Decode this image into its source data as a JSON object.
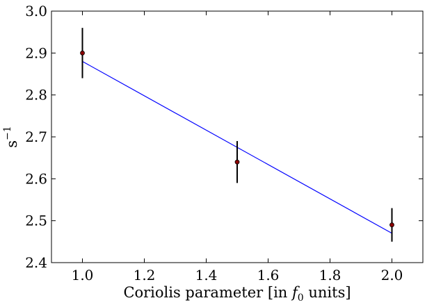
{
  "chart_data": {
    "type": "scatter",
    "xlabel_parts": [
      "Coriolis parameter [in ",
      "f",
      "0",
      " units]"
    ],
    "ylabel_parts": [
      "s",
      "−1"
    ],
    "xlim": [
      0.9,
      2.1
    ],
    "ylim": [
      2.4,
      3.0
    ],
    "xticks": [
      1.0,
      1.2,
      1.4,
      1.6,
      1.8,
      2.0
    ],
    "xtick_labels": [
      "1.0",
      "1.2",
      "1.4",
      "1.6",
      "1.8",
      "2.0"
    ],
    "yticks": [
      2.4,
      2.5,
      2.6,
      2.7,
      2.8,
      2.9,
      3.0
    ],
    "ytick_labels": [
      "2.4",
      "2.5",
      "2.6",
      "2.7",
      "2.8",
      "2.9",
      "3.0"
    ],
    "grid": false,
    "points": [
      {
        "x": 1.0,
        "y": 2.9,
        "err": 0.06
      },
      {
        "x": 1.5,
        "y": 2.64,
        "err": 0.05
      },
      {
        "x": 2.0,
        "y": 2.49,
        "err": 0.04
      }
    ],
    "fit_line": {
      "x": [
        1.0,
        2.0
      ],
      "y": [
        2.88,
        2.47
      ]
    },
    "colors": {
      "fit": "#0000ff",
      "marker": "#8b0000",
      "errorbar": "#000000",
      "axes": "#000000"
    }
  }
}
